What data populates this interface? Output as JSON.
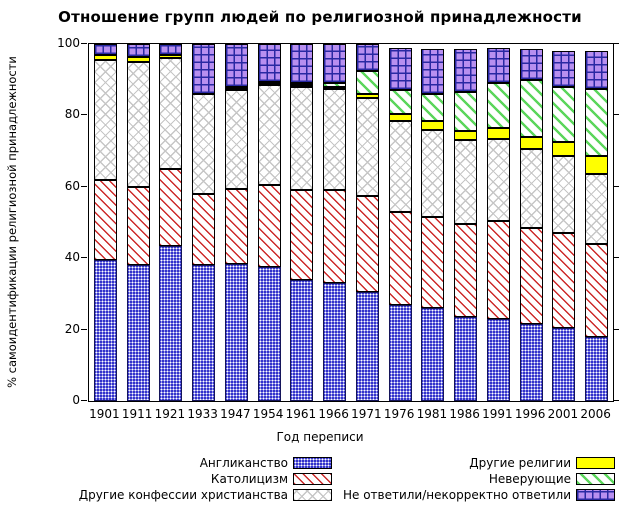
{
  "title": "Отношение групп людей по религиозной принадлежности",
  "chart_data": {
    "type": "bar",
    "subtype": "stacked-percentage",
    "title": "Отношение групп людей по религиозной принадлежности",
    "xlabel": "Год переписи",
    "ylabel": "% самоидентификации религиозной принадлежности",
    "ylim": [
      0,
      100
    ],
    "yticks": [
      0,
      20,
      40,
      60,
      80,
      100
    ],
    "grid": false,
    "legend_position": "bottom-two-columns",
    "categories": [
      "1901",
      "1911",
      "1921",
      "1933",
      "1947",
      "1954",
      "1961",
      "1966",
      "1971",
      "1976",
      "1981",
      "1986",
      "1991",
      "1996",
      "2001",
      "2006"
    ],
    "series": [
      {
        "name": "Англиканство",
        "pattern": "blue-check",
        "fill": "#3232cc",
        "pattern_color": "#ffffff",
        "values": [
          39.5,
          38,
          43.5,
          38,
          38.5,
          37.5,
          34,
          33,
          30.5,
          27,
          26,
          23.5,
          23,
          21.5,
          20.5,
          18
        ]
      },
      {
        "name": "Католицизм",
        "pattern": "red-hatch",
        "fill": "#ffffff",
        "pattern_color": "#cc2929",
        "values": [
          22.5,
          22,
          21.5,
          20,
          21,
          23,
          25,
          26,
          27,
          26,
          25.5,
          26,
          27.5,
          27,
          26.5,
          26
        ]
      },
      {
        "name": "Другие конфессии христианства",
        "pattern": "gray-cross",
        "fill": "#ffffff",
        "pattern_color": "#c6c6c6",
        "values": [
          33.5,
          35,
          31,
          28,
          27.5,
          28,
          29,
          28.5,
          27.5,
          25.5,
          24.5,
          23.5,
          23,
          22,
          21.5,
          19.5
        ]
      },
      {
        "name": "Другие религии",
        "pattern": "yellow-solid",
        "fill": "#ffff00",
        "pattern_color": "#ffff00",
        "values": [
          1.5,
          1.5,
          1,
          0,
          0.5,
          0.5,
          0.5,
          0.5,
          1,
          2,
          2.5,
          2.5,
          3,
          3.5,
          4,
          5
        ]
      },
      {
        "name": "Неверующие",
        "pattern": "green-hatch",
        "fill": "#ffffff",
        "pattern_color": "#5cd65c",
        "values": [
          0,
          0,
          0,
          0,
          0.5,
          0.5,
          0.5,
          1,
          6.5,
          6.5,
          7.5,
          11,
          12.5,
          16,
          15.5,
          19
        ]
      },
      {
        "name": "Не ответили/некорректно ответили",
        "pattern": "purple-grid",
        "fill": "#b88ff0",
        "pattern_color": "#2929a3",
        "values": [
          3,
          3.5,
          3,
          14,
          12,
          10.5,
          11,
          11,
          7.5,
          12,
          12.5,
          12,
          10,
          8.5,
          10,
          10.5
        ]
      }
    ],
    "totals": [
      100,
      100,
      100,
      100,
      100,
      100,
      100,
      100,
      100,
      99,
      98.5,
      98.5,
      99,
      98.5,
      98,
      98
    ],
    "legend_columns": [
      [
        0,
        1,
        2
      ],
      [
        3,
        4,
        5
      ]
    ]
  },
  "colors": {
    "background": "#ffffff",
    "axis": "#000000",
    "text": "#000000"
  }
}
